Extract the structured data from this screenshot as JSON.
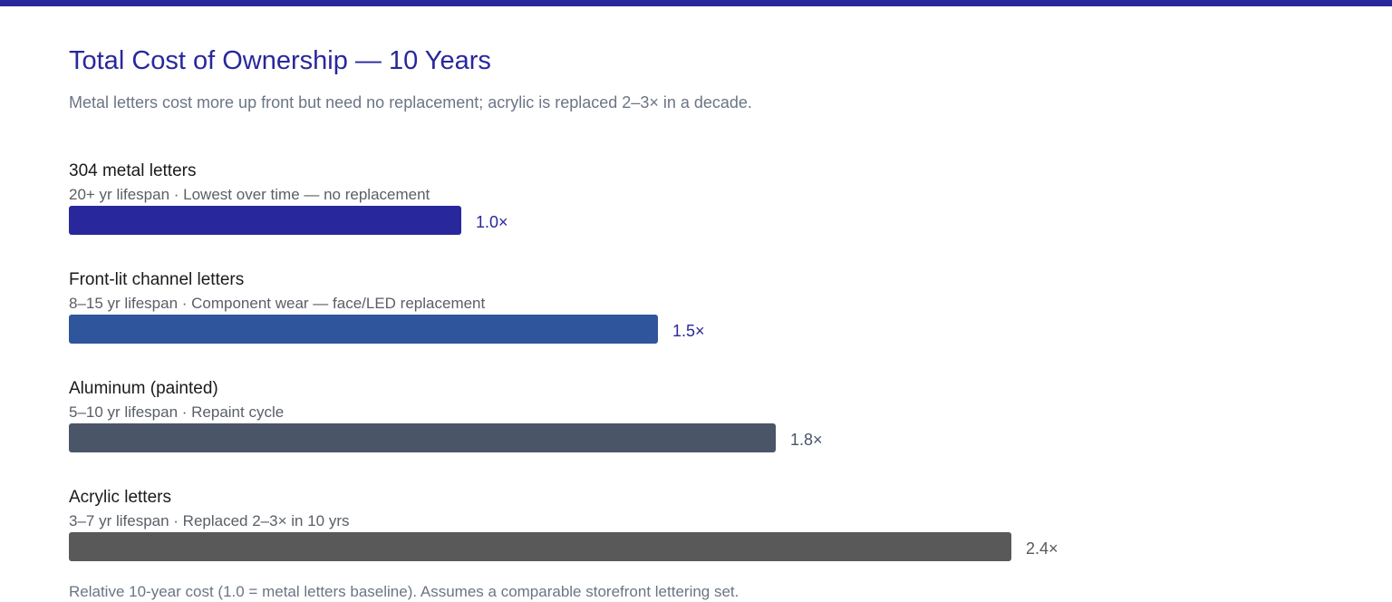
{
  "header": {
    "title": "Total Cost of Ownership — 10 Years",
    "subtitle": "Metal letters cost more up front but need no replacement; acrylic is replaced 2–3× in a decade."
  },
  "footnote": "Relative 10-year cost (1.0 = metal letters baseline). Assumes a comparable storefront lettering set.",
  "chart_data": {
    "type": "bar",
    "orientation": "horizontal",
    "title": "Total Cost of Ownership — 10 Years",
    "subtitle": "Metal letters cost more up front but need no replacement; acrylic is replaced 2–3× in a decade.",
    "categories": [
      "304 metal letters",
      "Front-lit channel letters",
      "Aluminum (painted)",
      "Acrylic letters"
    ],
    "descriptions": [
      "20+ yr lifespan · Lowest over time — no replacement",
      "8–15 yr lifespan · Component wear — face/LED replacement",
      "5–10 yr lifespan · Repaint cycle",
      "3–7 yr lifespan · Replaced 2–3× in 10 yrs"
    ],
    "values": [
      1.0,
      1.5,
      1.8,
      2.4
    ],
    "value_labels": [
      "1.0×",
      "1.5×",
      "1.8×",
      "2.4×"
    ],
    "colors": [
      "#28289c",
      "#2f569c",
      "#4a5568",
      "#595959"
    ],
    "label_colors": [
      "#28289c",
      "#28289c",
      "#4a5568",
      "#595959"
    ],
    "xlim": [
      0,
      2.4
    ],
    "grid": false,
    "legend": "none"
  }
}
